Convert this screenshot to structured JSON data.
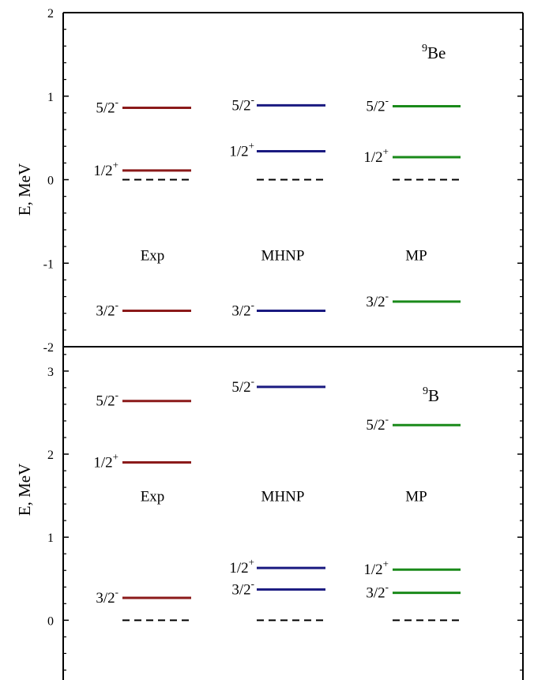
{
  "chart_data": [
    {
      "type": "level-scheme",
      "nucleus": {
        "mass": "9",
        "symbol": "Be"
      },
      "ylabel": "E, MeV",
      "ylim": [
        -2,
        2
      ],
      "yticks": [
        -2,
        -1,
        0,
        1,
        2
      ],
      "yticklabels": [
        "-2",
        "-1",
        "0",
        "1",
        "2"
      ],
      "columns": [
        {
          "name": "Exp",
          "color": "#8b1a1a",
          "label_y": -0.9,
          "ground_dashed": 0,
          "levels": [
            {
              "energy": 0.86,
              "spin": "5/2",
              "parity": "-"
            },
            {
              "energy": 0.11,
              "spin": "1/2",
              "parity": "+"
            },
            {
              "energy": -1.57,
              "spin": "3/2",
              "parity": "-"
            }
          ]
        },
        {
          "name": "MHNP",
          "color": "#1a1a80",
          "label_y": -0.9,
          "ground_dashed": 0,
          "levels": [
            {
              "energy": 0.89,
              "spin": "5/2",
              "parity": "-"
            },
            {
              "energy": 0.34,
              "spin": "1/2",
              "parity": "+"
            },
            {
              "energy": -1.57,
              "spin": "3/2",
              "parity": "-"
            }
          ]
        },
        {
          "name": "MP",
          "color": "#1a8a1a",
          "label_y": -0.9,
          "ground_dashed": 0,
          "levels": [
            {
              "energy": 0.88,
              "spin": "5/2",
              "parity": "-"
            },
            {
              "energy": 0.27,
              "spin": "1/2",
              "parity": "+"
            },
            {
              "energy": -1.46,
              "spin": "3/2",
              "parity": "-"
            }
          ]
        }
      ]
    },
    {
      "type": "level-scheme",
      "nucleus": {
        "mass": "9",
        "symbol": "B"
      },
      "ylabel": "E, MeV",
      "ylim": [
        -0.9,
        3.55
      ],
      "yticks": [
        0,
        1,
        2,
        3
      ],
      "yticklabels": [
        "0",
        "1",
        "2",
        "3"
      ],
      "columns": [
        {
          "name": "Exp",
          "color": "#8b1a1a",
          "label_y": 1.5,
          "ground_dashed": 0,
          "levels": [
            {
              "energy": 2.64,
              "spin": "5/2",
              "parity": "-"
            },
            {
              "energy": 1.9,
              "spin": "1/2",
              "parity": "+"
            },
            {
              "energy": 0.27,
              "spin": "3/2",
              "parity": "-"
            }
          ]
        },
        {
          "name": "MHNP",
          "color": "#1a1a80",
          "label_y": 1.5,
          "ground_dashed": 0,
          "levels": [
            {
              "energy": 2.81,
              "spin": "5/2",
              "parity": "-"
            },
            {
              "energy": 0.63,
              "spin": "1/2",
              "parity": "+"
            },
            {
              "energy": 0.37,
              "spin": "3/2",
              "parity": "-"
            }
          ]
        },
        {
          "name": "MP",
          "color": "#1a8a1a",
          "label_y": 1.5,
          "ground_dashed": 0,
          "levels": [
            {
              "energy": 2.35,
              "spin": "5/2",
              "parity": "-"
            },
            {
              "energy": 0.61,
              "spin": "1/2",
              "parity": "+"
            },
            {
              "energy": 0.33,
              "spin": "3/2",
              "parity": "-"
            }
          ]
        }
      ]
    }
  ]
}
